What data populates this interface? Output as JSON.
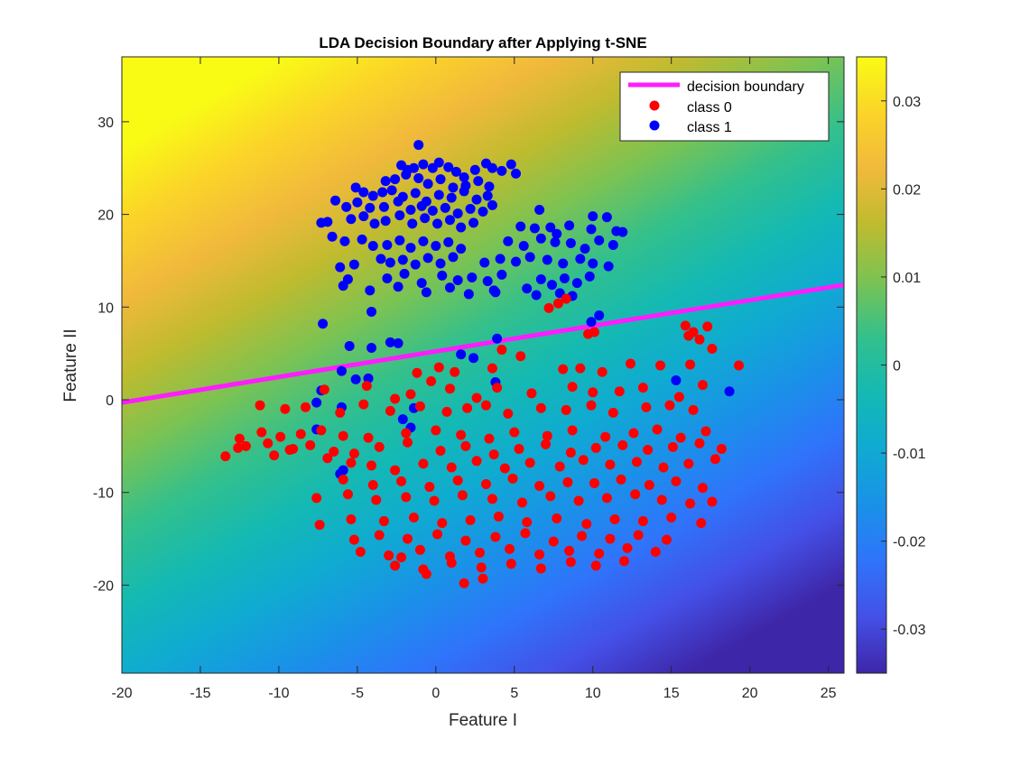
{
  "chart_data": {
    "type": "scatter",
    "title": "LDA Decision Boundary after Applying t-SNE",
    "xlabel": "Feature I",
    "ylabel": "Feature II",
    "xlim": [
      -20,
      26
    ],
    "ylim": [
      -29.5,
      37
    ],
    "xticks": [
      -20,
      -15,
      -10,
      -5,
      0,
      5,
      10,
      15,
      20,
      25
    ],
    "yticks": [
      -20,
      -10,
      0,
      10,
      20,
      30
    ],
    "grid": false,
    "background": {
      "type": "heatmap",
      "description": "LDA decision function over the feature plane; increases upward (direction perpendicular to the boundary)",
      "range": [
        -0.035,
        0.035
      ],
      "colormap": "parula"
    },
    "colorbar": {
      "ticks": [
        0.03,
        0.02,
        0.01,
        0,
        -0.01,
        -0.02,
        -0.03
      ],
      "tick_labels": [
        "0.03",
        "0.02",
        "0.01",
        "0",
        "-0.01",
        "-0.02",
        "-0.03"
      ],
      "range": [
        -0.035,
        0.035
      ]
    },
    "legend": {
      "position": "top-right",
      "entries": [
        {
          "label": "decision boundary",
          "color": "#ff1cff",
          "marker": "line"
        },
        {
          "label": "class 0",
          "color": "#ff0000",
          "marker": "dot"
        },
        {
          "label": "class 1",
          "color": "#0000ff",
          "marker": "dot"
        }
      ]
    },
    "series": [
      {
        "name": "decision boundary",
        "kind": "line",
        "color": "#ff1cff",
        "x": [
          -20,
          26
        ],
        "y": [
          -0.3,
          12.4
        ]
      },
      {
        "name": "class 1",
        "kind": "scatter",
        "color": "#0000ff",
        "x": [
          -1.1,
          -2.2,
          -1.8,
          -1.4,
          -0.8,
          -0.2,
          0.2,
          0.8,
          1.3,
          1.8,
          2.5,
          3.2,
          3.6,
          4.2,
          4.8,
          5.1,
          -3.2,
          -2.6,
          -1.9,
          -1.1,
          -0.5,
          0.3,
          1.1,
          1.9,
          2.7,
          3.4,
          -5.1,
          -4.6,
          -4.0,
          -3.4,
          -2.8,
          -2.1,
          -1.3,
          -0.6,
          0.2,
          1.0,
          1.8,
          2.6,
          3.3,
          -6.4,
          -5.7,
          -5.0,
          -4.2,
          -3.3,
          -2.4,
          -1.6,
          -0.9,
          -0.2,
          0.6,
          1.4,
          2.2,
          3.0,
          3.6,
          6.6,
          10.0,
          10.9,
          -7.3,
          -6.9,
          -5.4,
          -4.6,
          -3.9,
          -3.2,
          -2.3,
          -1.5,
          -0.7,
          0.1,
          0.9,
          1.6,
          2.4,
          5.4,
          6.3,
          7.3,
          7.7,
          8.5,
          9.9,
          11.5,
          11.9,
          -6.6,
          -5.8,
          -4.7,
          -4.0,
          -3.1,
          -2.3,
          -1.6,
          -0.8,
          0.0,
          0.8,
          1.6,
          4.6,
          5.6,
          6.7,
          7.6,
          8.6,
          9.5,
          10.4,
          11.3,
          -6.1,
          -5.2,
          -3.5,
          -2.9,
          -2.1,
          -1.3,
          -0.5,
          0.3,
          1.1,
          3.1,
          4.1,
          5.1,
          6.0,
          7.1,
          8.1,
          9.2,
          10.0,
          11.0,
          -5.6,
          -3.1,
          -2.0,
          -0.9,
          0.4,
          1.4,
          2.3,
          3.3,
          4.2,
          6.7,
          7.4,
          8.2,
          9.0,
          9.8,
          -5.9,
          -4.2,
          -2.4,
          -0.6,
          0.9,
          2.1,
          3.7,
          5.8,
          6.4,
          7.9,
          8.7,
          -7.2,
          -4.1,
          3.8,
          9.9,
          10.4,
          -2.9,
          -2.4,
          -5.5,
          -4.1,
          1.6,
          2.4,
          3.9,
          -6.0,
          -4.3,
          -7.3,
          -5.1,
          3.8,
          15.3,
          18.7,
          -7.6,
          -6.0,
          -1.4,
          -2.1,
          -1.6,
          -7.6,
          -5.9,
          -6.1
        ],
        "y": [
          27.5,
          25.3,
          24.8,
          25.0,
          25.4,
          25.0,
          25.6,
          25.1,
          24.6,
          24.0,
          24.8,
          25.5,
          25.0,
          24.7,
          25.4,
          24.4,
          23.6,
          23.8,
          24.3,
          23.9,
          23.3,
          23.8,
          22.9,
          23.1,
          23.6,
          23.0,
          22.9,
          22.4,
          22.0,
          22.4,
          22.6,
          21.9,
          22.3,
          21.4,
          22.1,
          21.8,
          22.5,
          21.6,
          22.0,
          21.5,
          20.8,
          21.3,
          20.7,
          20.8,
          21.4,
          20.5,
          20.9,
          20.4,
          20.7,
          20.1,
          20.6,
          20.3,
          21.0,
          20.5,
          19.8,
          19.7,
          19.1,
          19.2,
          19.5,
          19.8,
          19.0,
          19.3,
          19.9,
          19.0,
          19.6,
          19.0,
          19.4,
          18.6,
          19.1,
          18.7,
          18.5,
          18.6,
          17.9,
          18.8,
          18.4,
          18.2,
          18.1,
          17.6,
          17.1,
          17.3,
          16.6,
          16.7,
          17.2,
          16.4,
          17.1,
          16.6,
          17.0,
          16.3,
          17.1,
          16.6,
          17.4,
          17.0,
          16.9,
          16.3,
          17.2,
          16.7,
          14.3,
          14.6,
          15.2,
          14.8,
          15.1,
          14.6,
          15.3,
          14.7,
          15.4,
          14.8,
          15.2,
          14.9,
          15.4,
          15.1,
          14.7,
          15.2,
          14.7,
          14.4,
          13.0,
          13.1,
          13.6,
          12.6,
          13.4,
          12.9,
          13.2,
          12.8,
          13.5,
          13.0,
          12.4,
          13.1,
          12.6,
          13.3,
          12.3,
          11.8,
          12.2,
          11.6,
          12.1,
          11.4,
          11.8,
          12.0,
          11.3,
          11.5,
          11.2,
          8.2,
          9.5,
          11.6,
          8.4,
          9.1,
          6.2,
          6.1,
          5.8,
          5.6,
          4.9,
          4.5,
          6.6,
          3.1,
          2.3,
          1.0,
          2.2,
          1.9,
          2.1,
          0.9,
          -0.3,
          -0.8,
          -0.9,
          -2.1,
          -3.0,
          -3.2,
          -7.6,
          -8.0
        ]
      },
      {
        "name": "class 0",
        "kind": "scatter",
        "color": "#ff0000",
        "x": [
          7.8,
          8.3,
          7.2,
          9.7,
          10.1,
          15.9,
          16.4,
          16.8,
          17.3,
          16.1,
          17.6,
          19.3,
          4.2,
          0.2,
          -1.2,
          -0.3,
          1.2,
          3.6,
          5.4,
          8.1,
          9.2,
          10.6,
          12.4,
          14.3,
          16.2,
          -7.1,
          -4.4,
          -2.6,
          -1.6,
          0.9,
          2.6,
          3.9,
          6.1,
          8.7,
          10.0,
          11.7,
          13.2,
          15.5,
          17.0,
          -11.2,
          -9.6,
          -8.3,
          -6.1,
          -4.6,
          -2.9,
          -1.0,
          0.7,
          2.0,
          3.2,
          4.6,
          6.7,
          8.3,
          9.9,
          11.3,
          13.4,
          14.9,
          16.4,
          -12.5,
          -11.1,
          -9.9,
          -8.6,
          -7.3,
          -5.9,
          -4.3,
          -1.9,
          0.0,
          1.6,
          3.4,
          5.0,
          7.1,
          8.7,
          10.8,
          12.6,
          14.1,
          15.6,
          17.2,
          -13.4,
          -12.6,
          -10.7,
          -9.3,
          -8.0,
          -6.5,
          -5.2,
          -3.6,
          -1.8,
          0.3,
          1.9,
          3.7,
          5.3,
          7.0,
          8.6,
          10.2,
          11.9,
          13.5,
          15.1,
          16.8,
          18.2,
          -12.1,
          -10.3,
          -9.1,
          -6.9,
          -5.4,
          -4.1,
          -2.6,
          -0.8,
          1.0,
          2.6,
          4.4,
          6.0,
          7.9,
          9.4,
          11.1,
          12.8,
          14.5,
          16.1,
          17.8,
          -5.9,
          -4.0,
          -2.2,
          -0.4,
          1.4,
          3.2,
          4.9,
          6.6,
          8.4,
          10.1,
          11.8,
          13.6,
          15.3,
          17.0,
          -7.6,
          -5.6,
          -3.8,
          -1.9,
          -0.1,
          1.7,
          3.6,
          5.5,
          7.3,
          9.1,
          10.9,
          12.7,
          14.4,
          16.2,
          17.6,
          -7.4,
          -5.4,
          -3.3,
          -1.4,
          0.4,
          2.2,
          4.0,
          5.8,
          7.7,
          9.6,
          11.4,
          13.2,
          15.0,
          16.9,
          -5.2,
          -3.6,
          -1.8,
          0.1,
          1.9,
          3.8,
          5.7,
          7.5,
          9.3,
          11.1,
          12.9,
          14.7,
          -4.8,
          -3.0,
          -1.0,
          0.9,
          2.8,
          4.7,
          6.6,
          8.5,
          10.4,
          12.2,
          14.0,
          -2.6,
          -0.8,
          1.0,
          2.9,
          4.8,
          6.7,
          8.6,
          10.2,
          12.0,
          -2.2,
          -0.6,
          1.8,
          3.0
        ],
        "y": [
          10.4,
          10.9,
          9.9,
          7.1,
          7.3,
          8.0,
          7.3,
          6.5,
          7.9,
          6.9,
          5.5,
          3.7,
          5.4,
          3.5,
          2.9,
          2.0,
          3.0,
          3.4,
          4.7,
          3.3,
          3.4,
          3.0,
          3.9,
          3.7,
          3.8,
          1.1,
          1.5,
          0.1,
          0.6,
          1.2,
          0.2,
          1.3,
          0.7,
          1.4,
          0.8,
          0.9,
          1.3,
          0.3,
          1.6,
          -0.6,
          -1.0,
          -0.8,
          -1.4,
          -0.5,
          -1.2,
          -0.7,
          -1.3,
          -0.9,
          -0.6,
          -1.5,
          -0.9,
          -1.1,
          -0.6,
          -1.4,
          -0.8,
          -0.6,
          -1.1,
          -4.2,
          -3.5,
          -4.0,
          -3.7,
          -3.3,
          -3.9,
          -4.1,
          -3.6,
          -3.3,
          -3.8,
          -4.2,
          -3.5,
          -3.9,
          -3.3,
          -4.0,
          -3.6,
          -3.2,
          -4.1,
          -3.4,
          -6.1,
          -5.2,
          -4.7,
          -5.4,
          -4.9,
          -5.6,
          -5.8,
          -5.1,
          -4.6,
          -5.5,
          -5.0,
          -5.9,
          -5.3,
          -4.8,
          -5.7,
          -5.2,
          -4.9,
          -5.4,
          -5.1,
          -4.7,
          -5.3,
          -5.0,
          -6.0,
          -5.3,
          -6.3,
          -6.8,
          -7.1,
          -7.6,
          -6.9,
          -7.3,
          -6.6,
          -7.4,
          -6.8,
          -7.2,
          -6.5,
          -7.0,
          -6.7,
          -7.3,
          -6.9,
          -6.4,
          -8.6,
          -9.2,
          -8.8,
          -9.4,
          -8.7,
          -9.1,
          -8.5,
          -9.3,
          -8.9,
          -9.0,
          -8.6,
          -9.2,
          -8.8,
          -9.5,
          -10.6,
          -10.2,
          -10.8,
          -10.5,
          -10.9,
          -10.3,
          -10.7,
          -11.1,
          -10.4,
          -10.9,
          -10.6,
          -10.2,
          -10.8,
          -11.2,
          -11.0,
          -13.5,
          -12.9,
          -13.1,
          -12.7,
          -13.3,
          -13.0,
          -12.6,
          -13.2,
          -12.8,
          -13.4,
          -12.9,
          -13.1,
          -12.7,
          -13.3,
          -15.1,
          -14.6,
          -15.0,
          -14.5,
          -15.2,
          -14.8,
          -14.4,
          -15.3,
          -14.7,
          -15.0,
          -14.6,
          -15.1,
          -16.4,
          -16.8,
          -16.2,
          -16.9,
          -16.5,
          -16.1,
          -16.7,
          -16.3,
          -16.6,
          -16.0,
          -16.4,
          -17.9,
          -18.3,
          -17.6,
          -18.1,
          -17.7,
          -18.2,
          -17.5,
          -17.9,
          -17.4,
          -17.0,
          -18.8,
          -19.8,
          -19.3
        ]
      }
    ]
  }
}
